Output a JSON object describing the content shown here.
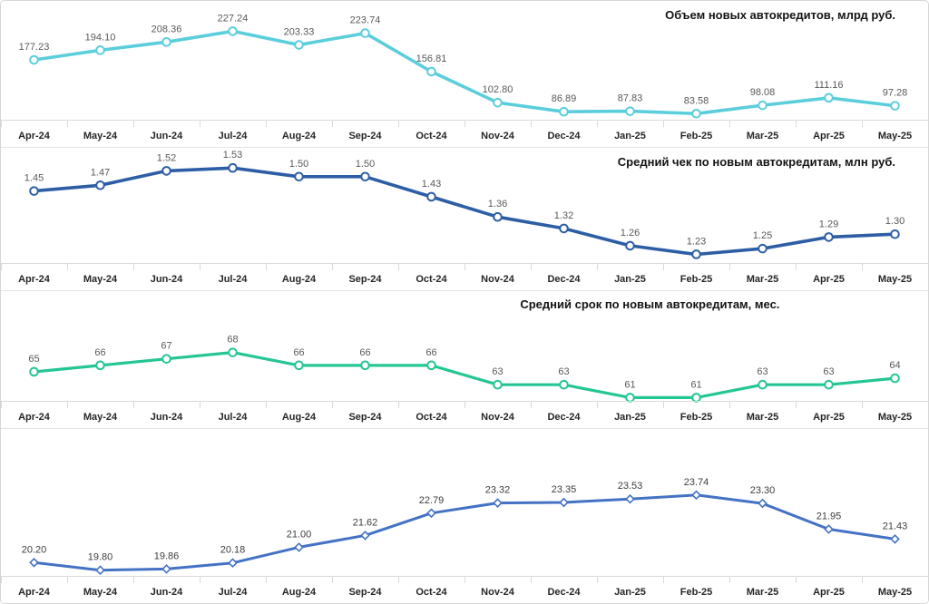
{
  "page": {
    "background": "#ffffff",
    "border_color": "#d6d6d6"
  },
  "axis": {
    "categories": [
      "Apr-24",
      "May-24",
      "Jun-24",
      "Jul-24",
      "Aug-24",
      "Sep-24",
      "Oct-24",
      "Nov-24",
      "Dec-24",
      "Jan-25",
      "Feb-25",
      "Mar-25",
      "Apr-25",
      "May-25"
    ],
    "line_color": "#d9d9d9",
    "label_color": "#262626"
  },
  "chart_data": [
    {
      "type": "line",
      "title": "Объем новых автокредитов, млрд руб.",
      "title_align": "right",
      "categories": [
        "Apr-24",
        "May-24",
        "Jun-24",
        "Jul-24",
        "Aug-24",
        "Sep-24",
        "Oct-24",
        "Nov-24",
        "Dec-24",
        "Jan-25",
        "Feb-25",
        "Mar-25",
        "Apr-25",
        "May-25"
      ],
      "values": [
        177.23,
        194.1,
        208.36,
        227.24,
        203.33,
        223.74,
        156.81,
        102.8,
        86.89,
        87.83,
        83.58,
        98.08,
        111.16,
        97.28
      ],
      "labels": [
        "177.23",
        "194.10",
        "208.36",
        "227.24",
        "203.33",
        "223.74",
        "156.81",
        "102.80",
        "86.89",
        "87.83",
        "83.58",
        "98.08",
        "111.16",
        "97.28"
      ],
      "color": "#5bcedc",
      "marker": "circle",
      "line_width": 3.6,
      "ylim": [
        73,
        280
      ],
      "label_color": "#595959",
      "legend": "none",
      "grid": false
    },
    {
      "type": "line",
      "title": "Средний чек по новым автокредитам, млн руб.",
      "title_align": "right",
      "categories": [
        "Apr-24",
        "May-24",
        "Jun-24",
        "Jul-24",
        "Aug-24",
        "Sep-24",
        "Oct-24",
        "Nov-24",
        "Dec-24",
        "Jan-25",
        "Feb-25",
        "Mar-25",
        "Apr-25",
        "May-25"
      ],
      "values": [
        1.45,
        1.47,
        1.52,
        1.53,
        1.5,
        1.5,
        1.43,
        1.36,
        1.32,
        1.26,
        1.23,
        1.25,
        1.29,
        1.3
      ],
      "labels": [
        "1.45",
        "1.47",
        "1.52",
        "1.53",
        "1.50",
        "1.50",
        "1.43",
        "1.36",
        "1.32",
        "1.26",
        "1.23",
        "1.25",
        "1.29",
        "1.30"
      ],
      "color": "#2d5ea5",
      "marker": "circle",
      "line_width": 3.6,
      "ylim": [
        1.2,
        1.6
      ],
      "label_color": "#595959",
      "legend": "none",
      "grid": false
    },
    {
      "type": "line",
      "title": "Средний срок по новым автокредитам, мес.",
      "title_align": "center-right",
      "categories": [
        "Apr-24",
        "May-24",
        "Jun-24",
        "Jul-24",
        "Aug-24",
        "Sep-24",
        "Oct-24",
        "Nov-24",
        "Dec-24",
        "Jan-25",
        "Feb-25",
        "Mar-25",
        "Apr-25",
        "May-25"
      ],
      "values": [
        65,
        66,
        67,
        68,
        66,
        66,
        66,
        63,
        63,
        61,
        61,
        63,
        63,
        64
      ],
      "labels": [
        "65",
        "66",
        "67",
        "68",
        "66",
        "66",
        "66",
        "63",
        "63",
        "61",
        "61",
        "63",
        "63",
        "64"
      ],
      "color": "#24c693",
      "marker": "circle",
      "line_width": 3.2,
      "ylim": [
        60.5,
        77.5
      ],
      "label_color": "#595959",
      "legend": "none",
      "grid": false
    },
    {
      "type": "line",
      "title": "",
      "title_align": "none",
      "categories": [
        "Apr-24",
        "May-24",
        "Jun-24",
        "Jul-24",
        "Aug-24",
        "Sep-24",
        "Oct-24",
        "Nov-24",
        "Dec-24",
        "Jan-25",
        "Feb-25",
        "Mar-25",
        "Apr-25",
        "May-25"
      ],
      "values": [
        20.2,
        19.8,
        19.86,
        20.18,
        21.0,
        21.62,
        22.79,
        23.32,
        23.35,
        23.53,
        23.74,
        23.3,
        21.95,
        21.43
      ],
      "labels": [
        "20.20",
        "19.80",
        "19.86",
        "20.18",
        "21.00",
        "21.62",
        "22.79",
        "23.32",
        "23.35",
        "23.53",
        "23.74",
        "23.30",
        "21.95",
        "21.43"
      ],
      "color": "#4472c4",
      "marker": "diamond",
      "line_width": 3.0,
      "ylim": [
        19.5,
        27.2
      ],
      "label_color": "#3d3d3d",
      "legend": "none",
      "grid": false
    }
  ]
}
